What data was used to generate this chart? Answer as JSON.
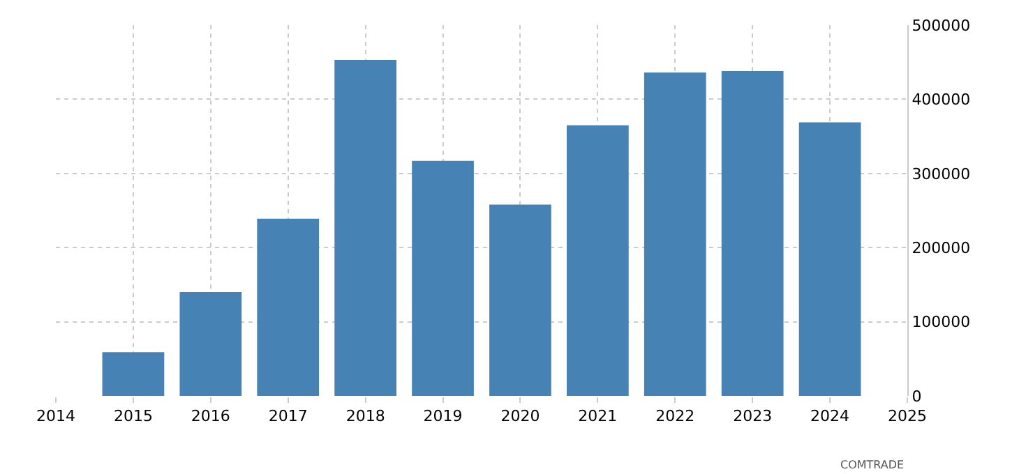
{
  "chart_data": {
    "type": "bar",
    "x": [
      2015,
      2016,
      2017,
      2018,
      2019,
      2020,
      2021,
      2022,
      2023,
      2024
    ],
    "values": [
      59000,
      140000,
      239000,
      453000,
      317000,
      258000,
      365000,
      436000,
      438000,
      369000
    ],
    "color": "#4682b4",
    "xlim": [
      2014,
      2025
    ],
    "xticks": [
      2014,
      2015,
      2016,
      2017,
      2018,
      2019,
      2020,
      2021,
      2022,
      2023,
      2024,
      2025
    ],
    "ylim": [
      0,
      500000
    ],
    "yticks": [
      0,
      100000,
      200000,
      300000,
      400000,
      500000
    ],
    "grid": true,
    "legend": false,
    "annotations": [
      "COMTRADE"
    ]
  }
}
